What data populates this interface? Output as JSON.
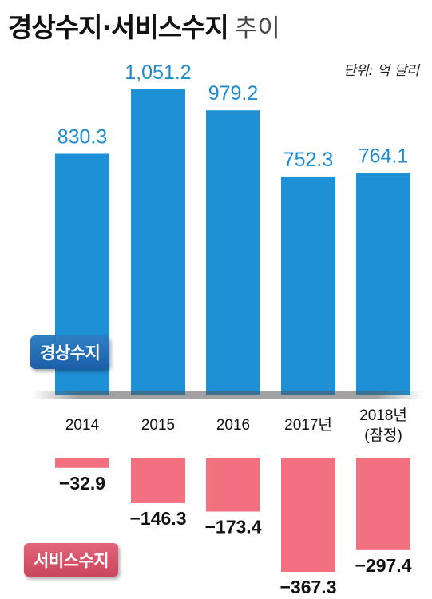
{
  "title": {
    "bold": "경상수지·서비스수지",
    "light": "추이"
  },
  "unit": "단위: 억 달러",
  "colors": {
    "current_account": "#1e90d6",
    "services": "#f27080",
    "value_text": "#1e8bd0"
  },
  "chart_data": {
    "type": "bar",
    "categories": [
      "2014",
      "2015",
      "2016",
      "2017년",
      "2018년"
    ],
    "category_notes": [
      "",
      "",
      "",
      "",
      "(잠정)"
    ],
    "series": [
      {
        "name": "경상수지",
        "values": [
          830.3,
          1051.2,
          979.2,
          752.3,
          764.1
        ],
        "labels": [
          "830.3",
          "1,051.2",
          "979.2",
          "752.3",
          "764.1"
        ]
      },
      {
        "name": "서비스수지",
        "values": [
          -32.9,
          -146.3,
          -173.4,
          -367.3,
          -297.4
        ],
        "labels": [
          "−32.9",
          "−146.3",
          "−173.4",
          "−367.3",
          "−297.4"
        ]
      }
    ]
  }
}
